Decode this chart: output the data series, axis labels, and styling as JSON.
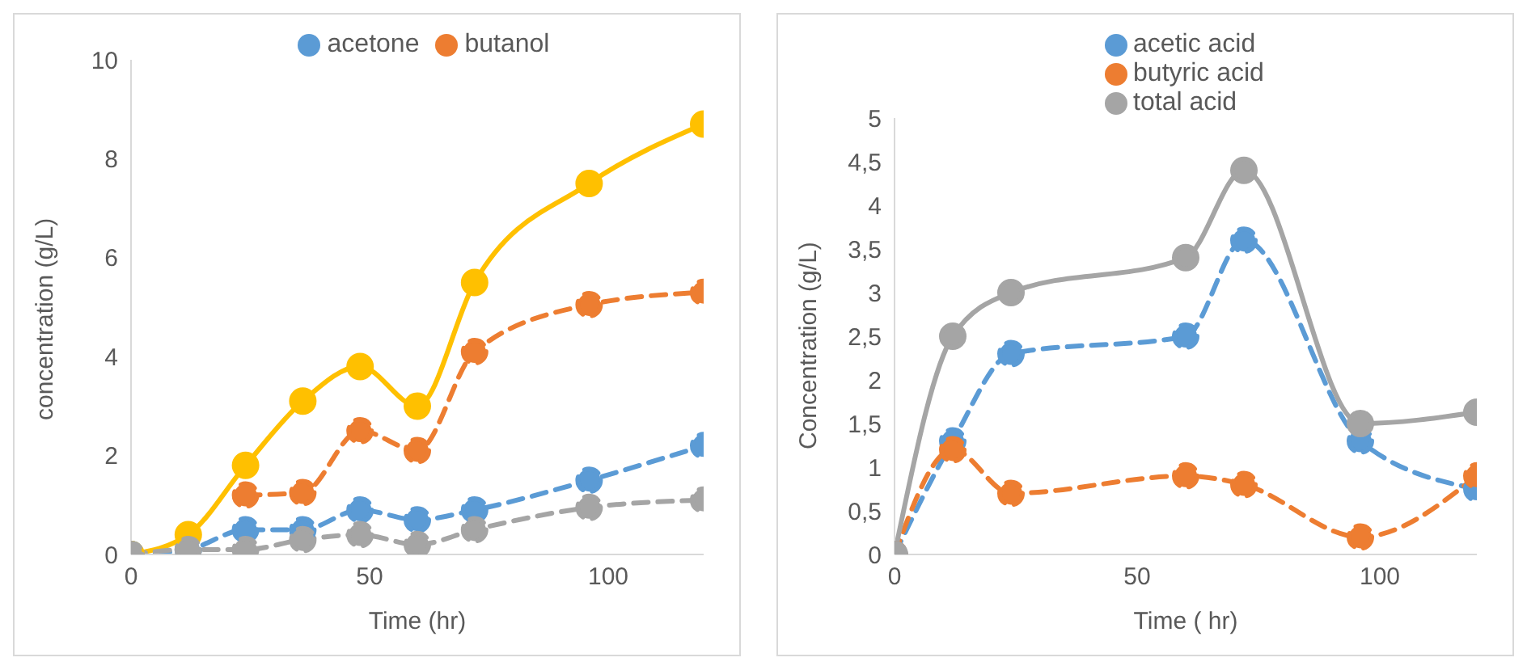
{
  "chart_data": [
    {
      "type": "line",
      "xlabel": "Time (hr)",
      "ylabel": "concentration (g/L)",
      "x": [
        0,
        12,
        24,
        36,
        48,
        60,
        72,
        96,
        120
      ],
      "xlim": [
        0,
        120
      ],
      "xticks": [
        0,
        50,
        100
      ],
      "ylim": [
        0,
        10
      ],
      "yticks": [
        0,
        2,
        4,
        6,
        8,
        10
      ],
      "legend": "top",
      "marker": "circle",
      "grid": false,
      "series": [
        {
          "name": "acetone",
          "color": "#5b9bd5",
          "line_style": "dashed",
          "values": [
            0,
            0.1,
            0.5,
            0.5,
            0.9,
            0.7,
            0.9,
            1.5,
            2.2
          ]
        },
        {
          "name": "butanol",
          "color": "#ed7d31",
          "line_style": "dashed",
          "values": [
            null,
            null,
            1.2,
            1.25,
            2.5,
            2.1,
            4.1,
            5.05,
            5.3
          ]
        },
        {
          "color": "#ffc000",
          "line_style": "solid",
          "values": [
            0,
            0.4,
            1.8,
            3.1,
            3.8,
            3.0,
            5.5,
            7.5,
            8.7
          ]
        },
        {
          "color": "#a5a5a5",
          "line_style": "dashed",
          "values": [
            0,
            0.1,
            0.1,
            0.3,
            0.4,
            0.2,
            0.5,
            0.95,
            1.1
          ]
        }
      ]
    },
    {
      "type": "line",
      "xlabel": "Time ( hr)",
      "ylabel": "Concentration (g/L)",
      "x": [
        0,
        12,
        24,
        60,
        72,
        96,
        120
      ],
      "xlim": [
        0,
        120
      ],
      "xticks": [
        0,
        50,
        100
      ],
      "ylim": [
        0,
        5
      ],
      "yticks": [
        0,
        {
          "value": 0.5,
          "label": "0,5"
        },
        1,
        {
          "value": 1.5,
          "label": "1,5"
        },
        2,
        {
          "value": 2.5,
          "label": "2,5"
        },
        3,
        {
          "value": 3.5,
          "label": "3,5"
        },
        4,
        {
          "value": 4.5,
          "label": "4,5"
        },
        5
      ],
      "legend": "top",
      "marker": "circle",
      "grid": false,
      "series": [
        {
          "name": "acetic acid",
          "color": "#5b9bd5",
          "line_style": "dashed",
          "values": [
            0,
            1.3,
            2.3,
            2.5,
            3.6,
            1.3,
            0.75
          ]
        },
        {
          "name": "butyric acid",
          "color": "#ed7d31",
          "line_style": "dashed",
          "values": [
            0,
            1.2,
            0.7,
            0.9,
            0.8,
            0.2,
            0.9
          ]
        },
        {
          "name": "total acid",
          "color": "#a5a5a5",
          "line_style": "solid",
          "values": [
            0,
            2.5,
            3.0,
            3.4,
            4.4,
            1.5,
            1.63
          ]
        }
      ]
    }
  ]
}
